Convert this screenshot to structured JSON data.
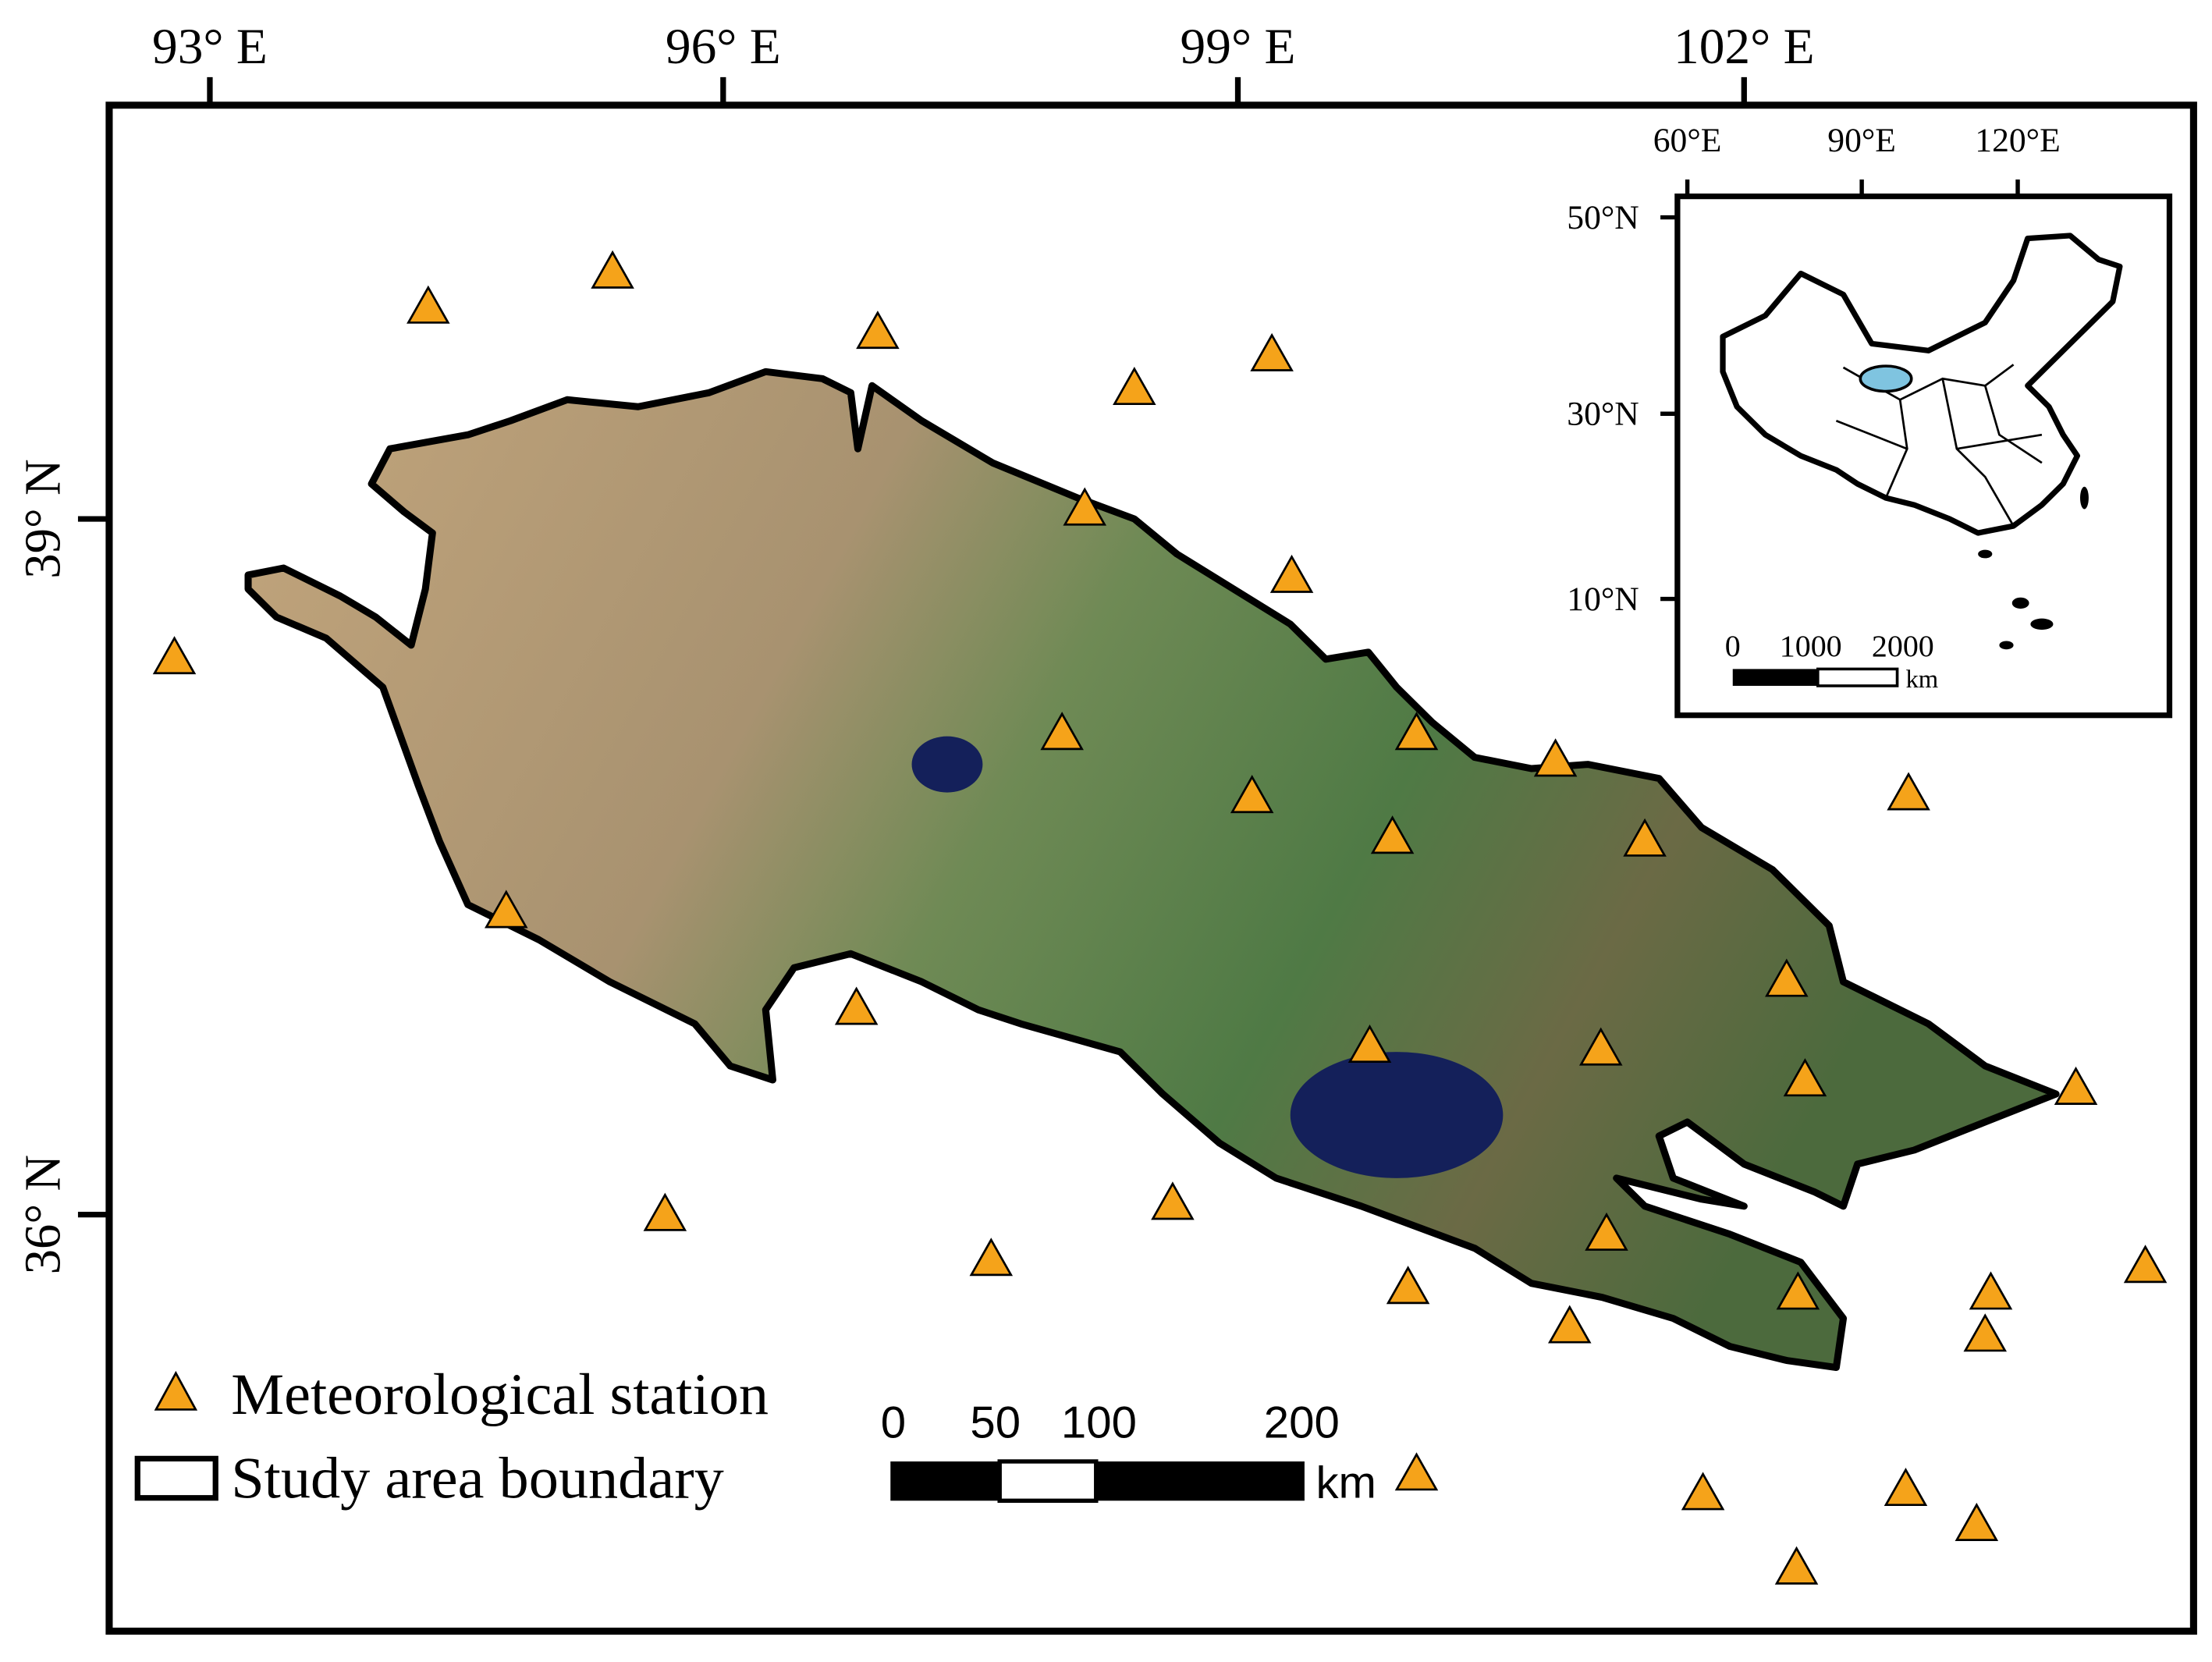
{
  "map": {
    "top_labels": [
      "93° E",
      "96° E",
      "99° E",
      "102° E"
    ],
    "left_labels": [
      "39° N",
      "36° N"
    ],
    "inset": {
      "top_labels": [
        "60°E",
        "90°E",
        "120°E"
      ],
      "left_labels": [
        "50°N",
        "30°N",
        "10°N"
      ],
      "scale_labels": [
        "0",
        "1000",
        "2000"
      ],
      "scale_unit": "km"
    },
    "legend": [
      "Meteorological station",
      "Study area boundary"
    ],
    "scale_bar": {
      "labels": [
        "0",
        "50",
        "100",
        "200"
      ],
      "unit": "km"
    }
  }
}
